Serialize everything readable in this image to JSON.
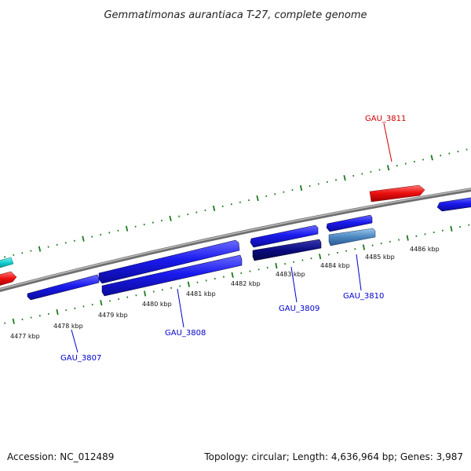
{
  "title": "Gemmatimonas aurantiaca T-27, complete genome",
  "footer": {
    "accession": "Accession: NC_012489",
    "topology": "Topology: circular; Length: 4,636,964 bp; Genes: 3,987"
  },
  "scale_labels": [
    "4477 kbp",
    "4478 kbp",
    "4479 kbp",
    "4480 kbp",
    "4481 kbp",
    "4482 kbp",
    "4483 kbp",
    "4484 kbp",
    "4485 kbp",
    "4486 kbp"
  ],
  "gene_labels": [
    {
      "id": "GAU_3807",
      "color": "#0000cc"
    },
    {
      "id": "GAU_3808",
      "color": "#0000cc"
    },
    {
      "id": "GAU_3809",
      "color": "#0000cc"
    },
    {
      "id": "GAU_3810",
      "color": "#0000cc"
    },
    {
      "id": "GAU_3811",
      "color": "#cc0000"
    }
  ],
  "colors": {
    "blue_gene": "#1a1aee",
    "dark_blue_gene": "#0a0a80",
    "steel_gene": "#4a86c0",
    "red_gene": "#ee1111",
    "cyan_gene": "#11cccc",
    "backbone": "#8a8a8a",
    "ticks": "#1f7a1f"
  }
}
